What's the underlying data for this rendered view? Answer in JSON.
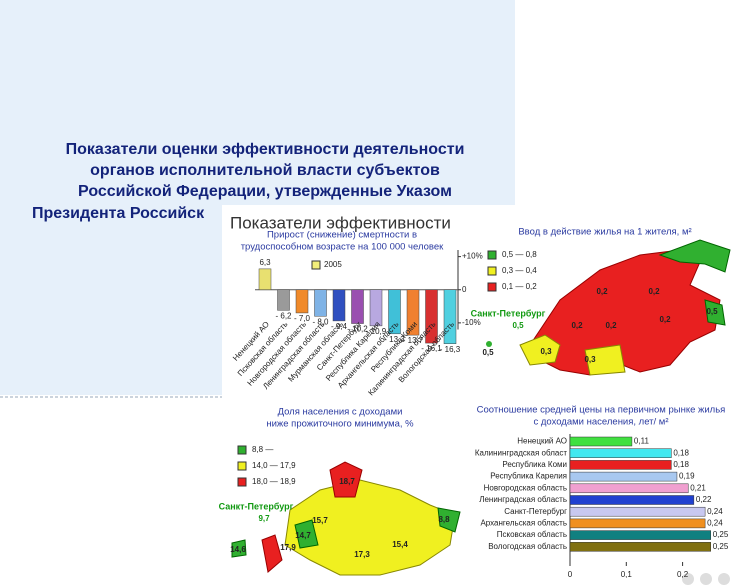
{
  "slide": {
    "title_lines": [
      "Показатели оценки эффективности деятельности",
      "органов исполнительной власти субъектов",
      "Российской Федерации, утвержденные Указом",
      "Президента Российск"
    ]
  },
  "panel": {
    "header": "Показатели эффективности"
  },
  "chart_data": [
    {
      "type": "bar",
      "title": [
        "Прирост (снижение) смертности в",
        "трудоспособном возрасте на 100 000 человек"
      ],
      "categories": [
        "Ненецкий АО",
        "Псковская область",
        "Новгородская область",
        "Ленинградская область",
        "Мурманская область",
        "Санкт-Петербург",
        "Республика Карелия",
        "Архангельская область",
        "Республика Коми",
        "Калининградская область",
        "Вологодская область"
      ],
      "series": [
        {
          "name": "2005",
          "color": "#f2ee7a",
          "values": [
            6.3,
            -6.2,
            -7.0,
            -8.0,
            -9.4,
            -10.2,
            -10.9,
            -13.3,
            -13.7,
            -16.1,
            -16.3
          ],
          "value_labels": [
            "6,3",
            "- 6,2",
            "- 7,0",
            "- 8,0",
            "- 9,4",
            "- 10,2",
            "- 10,9",
            "- 13,3",
            "- 13,7",
            "- 16,1",
            "- 16,3"
          ],
          "colors": [
            "#e8e070",
            "#9a9a9a",
            "#f08a2a",
            "#7fb3e6",
            "#3050c0",
            "#9a4fb0",
            "#b8a8e0",
            "#40c0d8",
            "#f08030",
            "#d83030",
            "#50d0e0"
          ]
        }
      ],
      "ylim": [
        -20,
        12
      ],
      "yticks": [
        {
          "value": 10,
          "label": "+10%"
        },
        0,
        {
          "value": -10,
          "label": "-10%"
        }
      ]
    },
    {
      "type": "hbar",
      "title": [
        "Соотношение средней цены на первичном рынке жилья",
        "с доходами населения, лет/ м²"
      ],
      "categories": [
        "Ненецкий АО",
        "Калининградская област",
        "Республика Коми",
        "Республика Карелия",
        "Новгородская область",
        "Ленинградская область",
        "Санкт-Петербург",
        "Архангельская область",
        "Псковская область",
        "Вологодская область"
      ],
      "values": [
        0.11,
        0.18,
        0.18,
        0.19,
        0.21,
        0.22,
        0.24,
        0.24,
        0.25,
        0.25
      ],
      "value_labels": [
        "0,11",
        "0,18",
        "0,18",
        "0,19",
        "0,21",
        "0,22",
        "0,24",
        "0,24",
        "0,25",
        "0,25"
      ],
      "colors": [
        "#40e040",
        "#40e8f0",
        "#e82020",
        "#a8c8f0",
        "#f0a0d0",
        "#2040d0",
        "#c8c8f0",
        "#f09020",
        "#108080",
        "#807010"
      ],
      "xlim": [
        0,
        0.27
      ],
      "xticks": [
        0,
        {
          "value": 0.1,
          "label": "0,1"
        },
        {
          "value": 0.2,
          "label": "0,2"
        }
      ]
    }
  ],
  "maps": [
    {
      "title": [
        "Ввод в действие жилья на 1 жителя, м²"
      ],
      "legend": [
        {
          "label": "0,5 — 0,8",
          "color": "#30b030"
        },
        {
          "label": "0,3 — 0,4",
          "color": "#f0f020"
        },
        {
          "label": "0,1 — 0,2",
          "color": "#e82020"
        }
      ],
      "labels": [
        "0,2",
        "0,2",
        "0,2",
        "0,2",
        "0,2",
        "0,3",
        "0,3",
        "0,5",
        "0,5"
      ],
      "city": "Санкт-Петербург",
      "city_value": "0,5"
    },
    {
      "title": [
        "Доля населения с доходами",
        "ниже прожиточного минимума, %"
      ],
      "legend": [
        {
          "label": "8,8 —",
          "color": "#30b030"
        },
        {
          "label": "14,0 — 17,9",
          "color": "#f0f020"
        },
        {
          "label": "18,0 — 18,9",
          "color": "#e82020"
        }
      ],
      "labels": [
        "18,7",
        "15,7",
        "15,4",
        "17,3",
        "17,9",
        "14,6",
        "8,8",
        "14,7"
      ],
      "city": "Санкт-Петербург",
      "city_value": "9,7"
    }
  ]
}
